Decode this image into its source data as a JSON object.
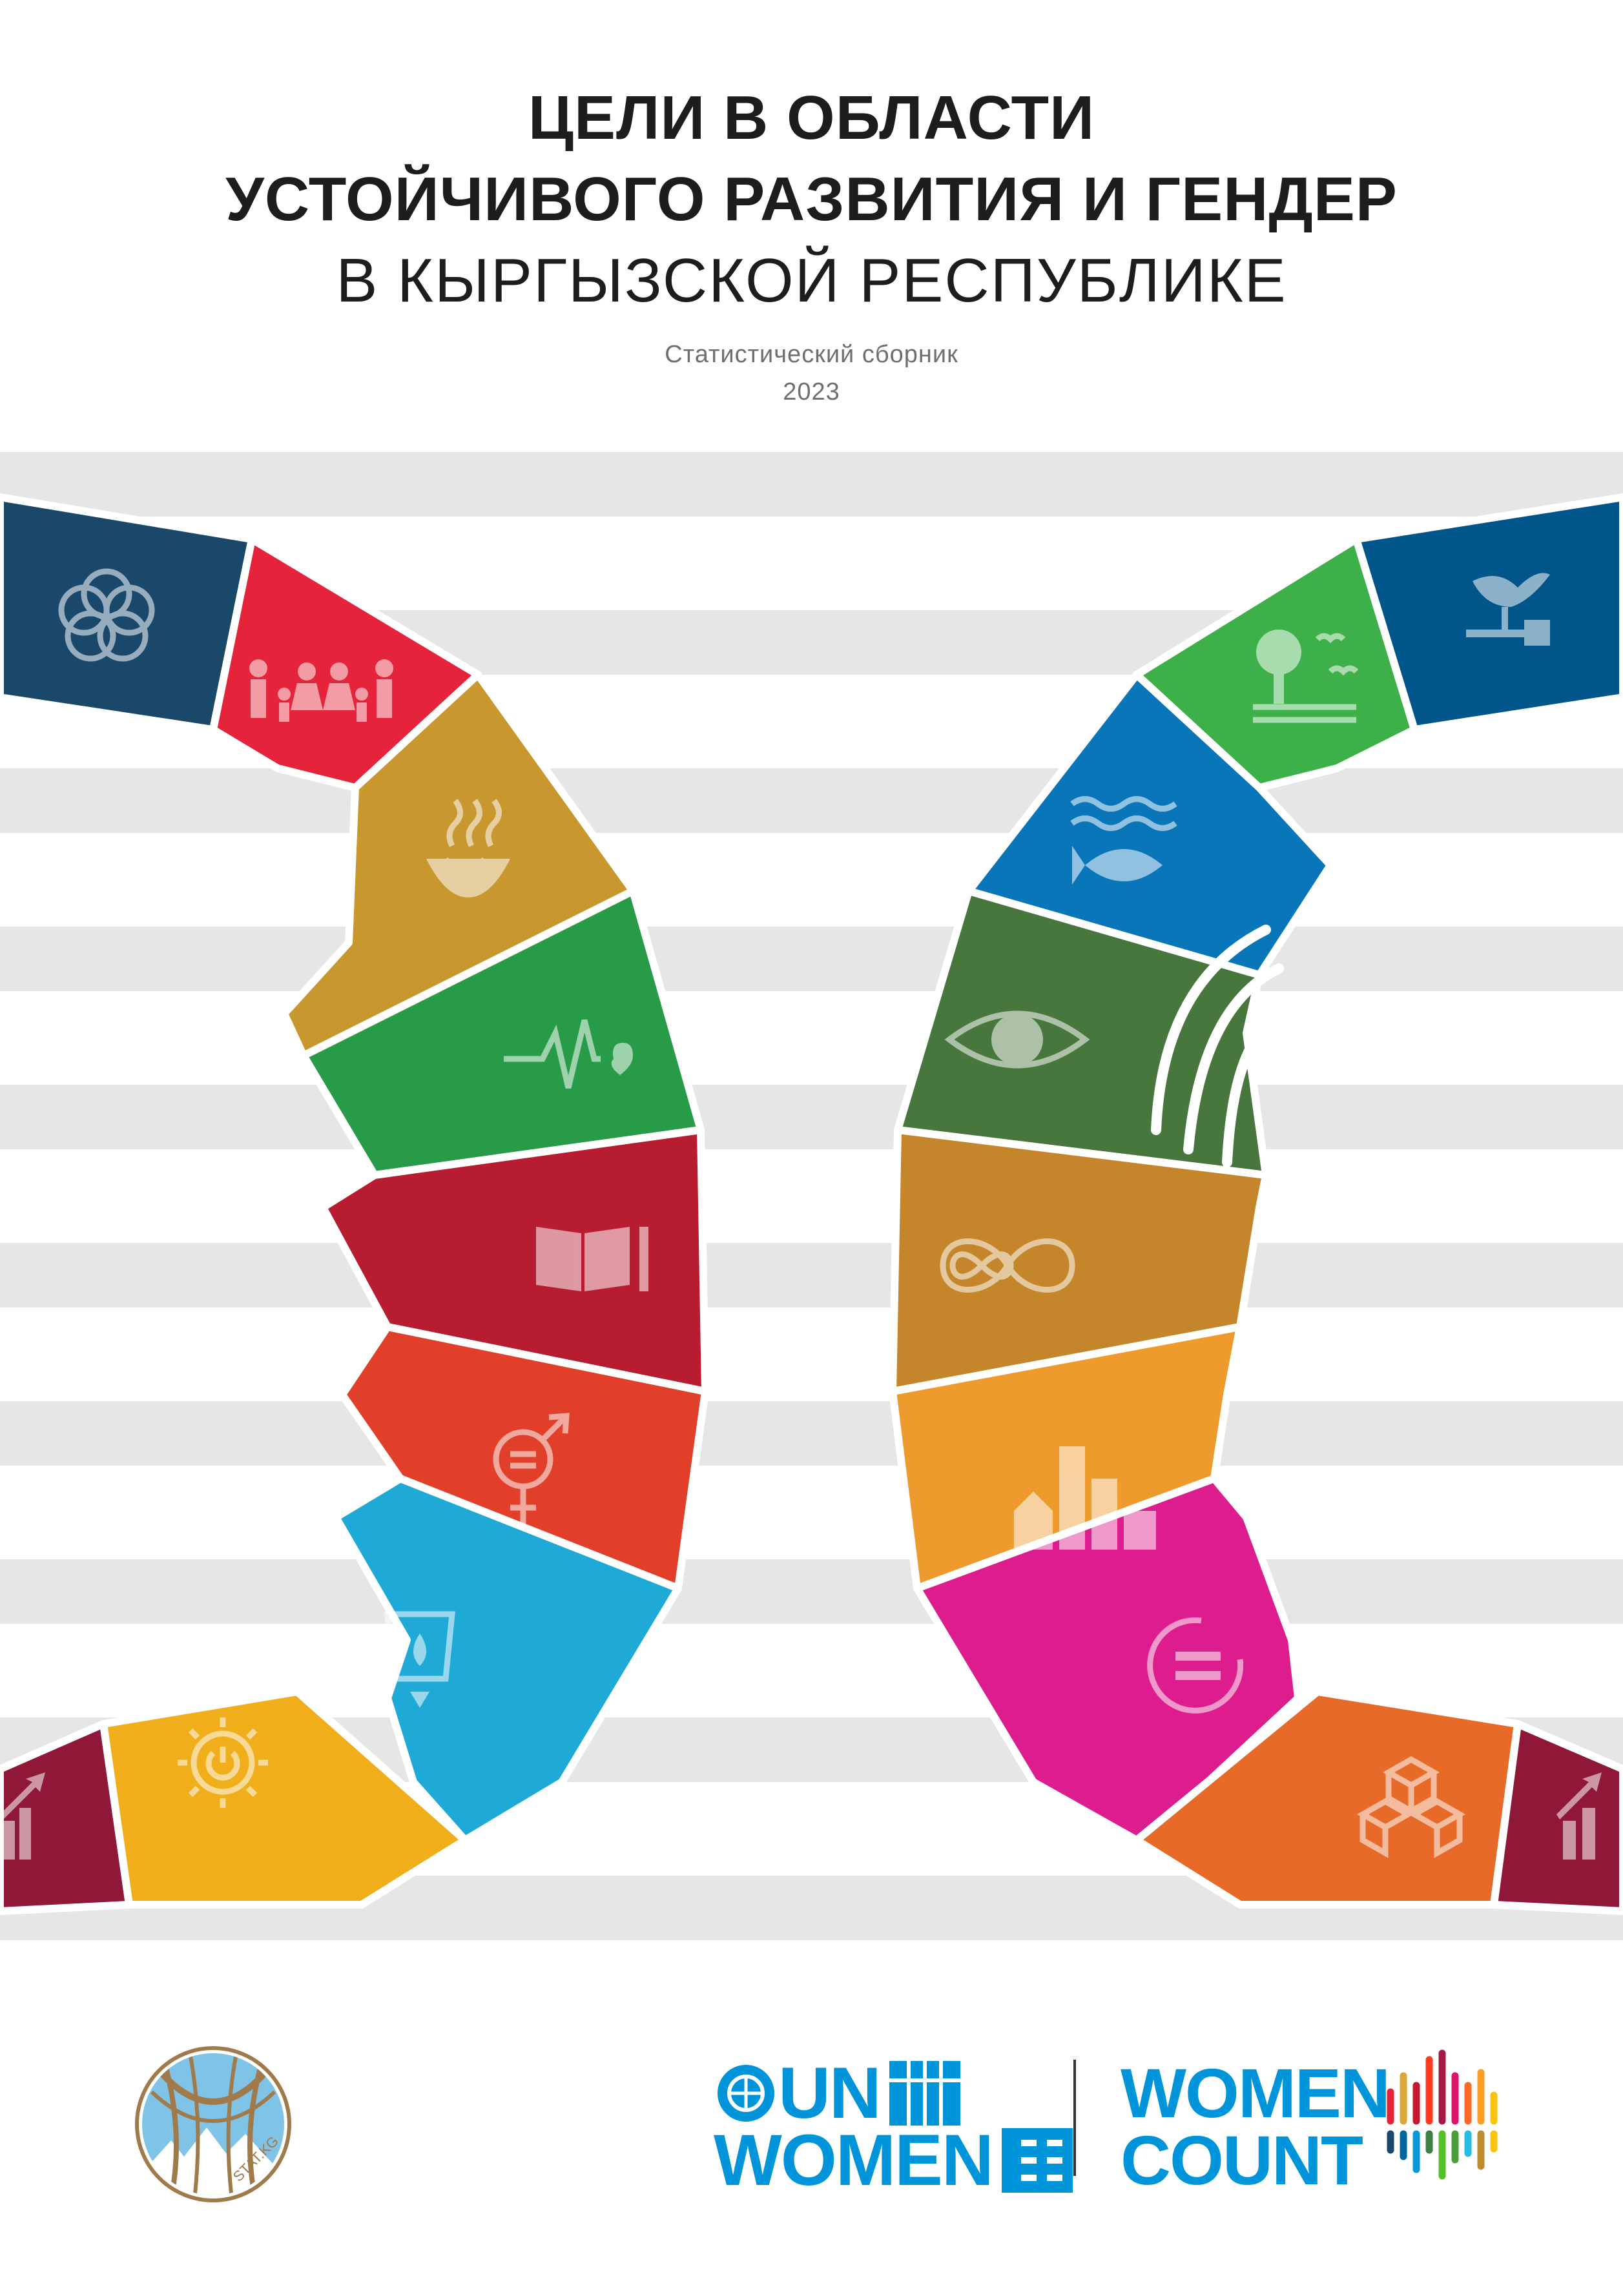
{
  "title": {
    "line1": "ЦЕЛИ В ОБЛАСТИ",
    "line2": "УСТОЙЧИВОГО РАЗВИТИЯ И ГЕНДЕР",
    "line3": "В КЫРГЫЗСКОЙ РЕСПУБЛИКЕ"
  },
  "subtitle": {
    "type": "Статистический сборник",
    "year": "2023"
  },
  "colors": {
    "goal1": "#e5243b",
    "goal2": "#dda63a",
    "goal3": "#4c9f38",
    "goal4": "#c5192d",
    "goal5": "#ff3a21",
    "goal6": "#26bde2",
    "goal7": "#fcc30b",
    "goal8": "#a21942",
    "goal9": "#fd6925",
    "goal10": "#dd1367",
    "goal11": "#fd9d24",
    "goal12": "#bf8b2e",
    "goal13": "#3f7e44",
    "goal14": "#0a97d9",
    "goal15": "#56c02b",
    "goal16": "#00689d",
    "goal17": "#19486a",
    "stripes": "#e6e6e7",
    "brand_blue": "#0095da"
  },
  "left_profile_icons": [
    "partnership-flower-icon",
    "family-icon",
    "bowl-icon",
    "heartbeat-icon",
    "book-pencil-icon",
    "gender-equality-icon",
    "water-glass-icon",
    "sun-power-icon",
    "growth-chart-icon"
  ],
  "right_profile_icons": [
    "dove-gavel-icon",
    "tree-birds-icon",
    "fish-waves-icon",
    "eye-globe-icon",
    "infinity-icon",
    "city-buildings-icon",
    "equality-circle-icon",
    "cubes-icon",
    "growth-chart-icon"
  ],
  "logos": {
    "stat_kg_text": "STAT.KG",
    "un_women_line1": "UN",
    "un_women_line2": "WOMEN",
    "women_count_line1": "WOMEN",
    "women_count_line2": "COUNT"
  }
}
